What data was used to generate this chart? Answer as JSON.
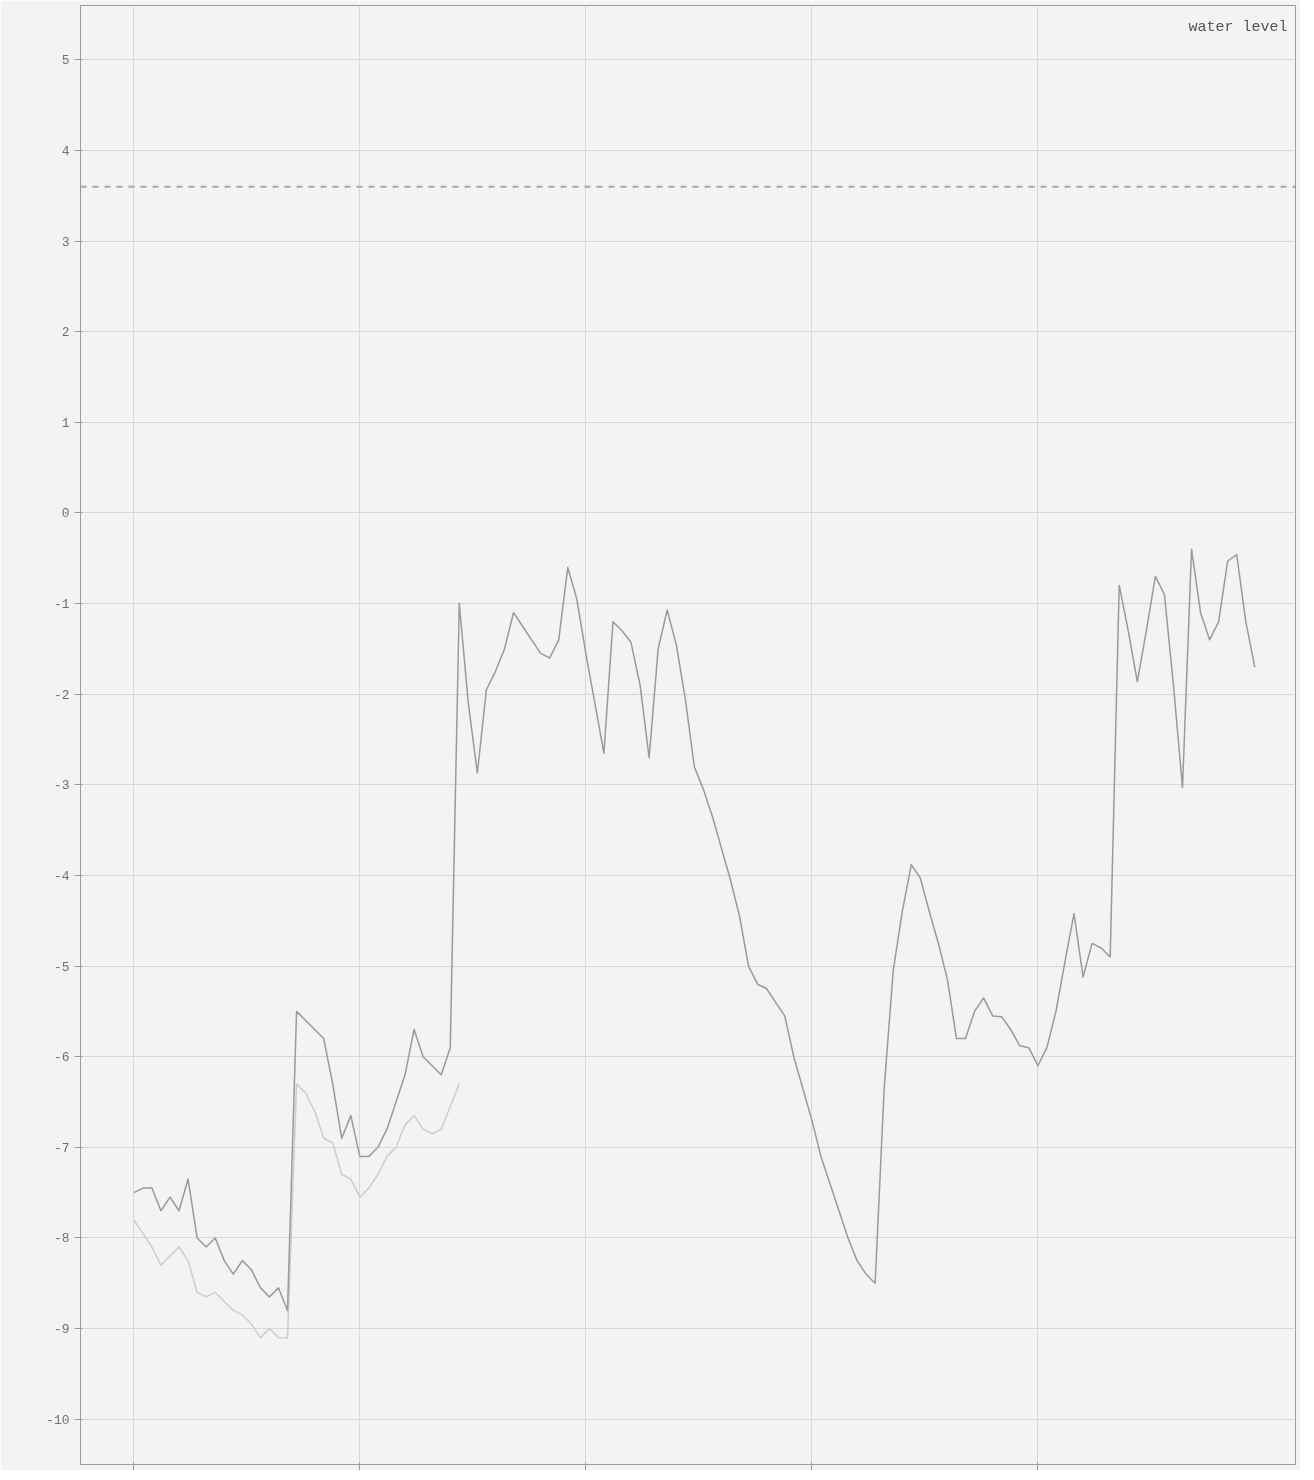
{
  "chart_data": {
    "type": "line",
    "title": "water level",
    "categories": [
      null,
      null,
      null,
      null,
      null,
      null,
      null,
      null,
      null,
      null,
      null,
      null,
      null,
      null,
      null,
      null,
      null,
      null,
      null,
      null,
      null,
      null,
      null,
      null,
      null,
      null,
      null,
      null,
      null,
      null,
      null,
      null,
      null,
      null,
      null,
      null,
      null,
      null,
      null,
      null,
      null,
      null,
      null,
      null,
      null,
      null,
      null,
      null,
      null,
      null,
      null,
      null,
      null,
      null,
      null,
      null,
      null,
      null,
      null,
      null,
      null,
      null,
      null,
      null,
      null,
      null,
      null,
      null,
      null,
      null,
      null,
      null,
      null,
      null,
      null,
      null,
      null,
      null,
      null,
      null,
      null,
      null,
      null,
      null,
      null,
      null,
      null,
      null,
      null,
      null,
      null,
      null,
      null,
      null,
      null,
      null,
      null,
      null,
      null,
      null,
      null,
      null,
      null,
      null,
      null,
      null,
      null,
      null,
      null,
      null,
      null,
      null,
      null,
      null,
      null,
      null,
      null,
      null,
      null,
      null,
      null,
      null,
      null,
      null,
      null
    ],
    "ylim": [
      -10.5,
      5.6
    ],
    "yticks": [
      -10,
      -9,
      -8,
      -7,
      -6,
      -5,
      -4,
      -3,
      -2,
      -1,
      0,
      1,
      2,
      3,
      4,
      5
    ],
    "grid": true,
    "tick_labels": "y",
    "line_style": "solid",
    "ref_lines": [
      {
        "axis": "y",
        "value": 3.6,
        "color": "#a8a8a8",
        "line_style": "dashed"
      }
    ],
    "series": [
      {
        "color": "#cdcdcd",
        "values": [
          -7.8,
          -7.95,
          -8.1,
          -8.3,
          -8.2,
          -8.1,
          -8.25,
          -8.6,
          -8.65,
          -8.6,
          -8.7,
          -8.8,
          -8.85,
          -8.95,
          -9.1,
          -9.0,
          -9.1,
          -9.1,
          -6.3,
          -6.4,
          -6.6,
          -6.9,
          -6.95,
          -7.3,
          -7.35,
          -7.55,
          -7.45,
          -7.3,
          -7.1,
          -7.0,
          -6.75,
          -6.65,
          -6.8,
          -6.85,
          -6.8,
          -6.55,
          -6.3,
          null,
          null,
          null,
          null,
          null,
          null,
          null,
          null,
          null,
          null,
          null,
          null,
          null,
          null,
          null,
          null,
          null,
          null,
          null,
          null,
          null,
          null,
          null,
          null,
          null,
          null,
          null,
          null,
          null,
          null,
          null,
          null,
          null,
          null,
          null,
          null,
          null,
          null,
          null,
          null,
          null,
          null,
          null,
          null,
          null,
          null,
          null,
          null,
          null,
          null,
          null,
          null,
          null,
          null,
          null,
          null,
          null,
          null,
          null,
          null,
          null,
          null,
          null,
          null,
          null,
          null,
          null,
          null,
          null,
          null,
          null,
          null,
          null,
          null,
          null,
          null,
          null,
          null,
          null,
          null,
          null,
          null,
          null,
          null,
          null,
          null,
          null,
          null
        ]
      },
      {
        "color": "#9a9a9a",
        "values": [
          -7.5,
          -7.45,
          -7.45,
          -7.7,
          -7.55,
          -7.7,
          -7.35,
          -8.0,
          -8.1,
          -8.0,
          -8.25,
          -8.4,
          -8.25,
          -8.35,
          -8.55,
          -8.65,
          -8.55,
          -8.8,
          -5.5,
          -5.6,
          -5.7,
          -5.8,
          -6.3,
          -6.9,
          -6.65,
          -7.1,
          -7.1,
          -7.0,
          -6.8,
          -6.5,
          -6.2,
          -5.7,
          -6.0,
          -6.1,
          -6.2,
          -5.9,
          -1.0,
          -2.1,
          -2.87,
          -1.95,
          -1.75,
          -1.5,
          -1.1,
          -1.25,
          -1.4,
          -1.55,
          -1.6,
          -1.4,
          -0.6,
          -0.95,
          -1.55,
          -2.1,
          -2.65,
          -1.2,
          -1.3,
          -1.43,
          -1.9,
          -2.7,
          -1.5,
          -1.07,
          -1.45,
          -2.05,
          -2.8,
          -3.05,
          -3.35,
          -3.7,
          -4.05,
          -4.45,
          -5.0,
          -5.2,
          -5.25,
          -5.4,
          -5.55,
          -6.0,
          -6.35,
          -6.7,
          -7.1,
          -7.4,
          -7.7,
          -8.0,
          -8.25,
          -8.4,
          -8.5,
          -6.35,
          -5.05,
          -4.4,
          -3.88,
          -4.03,
          -4.4,
          -4.75,
          -5.15,
          -5.8,
          -5.8,
          -5.5,
          -5.35,
          -5.55,
          -5.56,
          -5.7,
          -5.88,
          -5.9,
          -6.1,
          -5.9,
          -5.5,
          -4.95,
          -4.42,
          -5.12,
          -4.75,
          -4.8,
          -4.9,
          -0.8,
          -1.3,
          -1.86,
          -1.3,
          -0.7,
          -0.9,
          -1.9,
          -3.03,
          -0.4,
          -1.1,
          -1.4,
          -1.2,
          -0.53,
          -0.46,
          -1.2,
          -1.7
        ]
      }
    ]
  }
}
